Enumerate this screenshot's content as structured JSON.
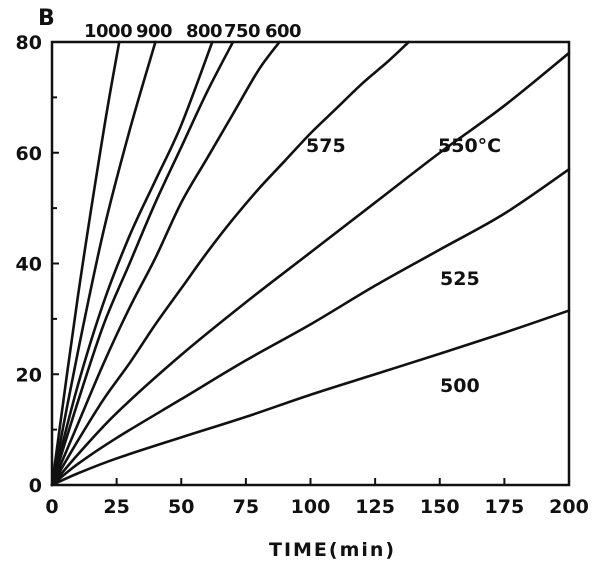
{
  "chart_data": {
    "type": "line",
    "panel_label": "B",
    "xlabel": "TIME(min)",
    "ylabel": "",
    "xlim": [
      0,
      200
    ],
    "ylim": [
      0,
      80
    ],
    "xticks": [
      0,
      25,
      50,
      75,
      100,
      125,
      150,
      175,
      200
    ],
    "yticks": [
      0,
      20,
      40,
      60,
      80
    ],
    "grid": false,
    "series": [
      {
        "name": "1000",
        "points": [
          [
            0,
            0
          ],
          [
            10,
            34
          ],
          [
            20,
            64
          ],
          [
            26,
            80
          ]
        ]
      },
      {
        "name": "900",
        "points": [
          [
            0,
            0
          ],
          [
            10,
            24
          ],
          [
            20,
            46
          ],
          [
            30,
            64
          ],
          [
            40,
            80
          ]
        ]
      },
      {
        "name": "800",
        "points": [
          [
            0,
            0
          ],
          [
            10,
            18
          ],
          [
            20,
            33
          ],
          [
            30,
            45
          ],
          [
            40,
            55
          ],
          [
            50,
            65
          ],
          [
            62,
            80
          ]
        ]
      },
      {
        "name": "750",
        "points": [
          [
            0,
            0
          ],
          [
            10,
            15
          ],
          [
            20,
            29
          ],
          [
            30,
            40
          ],
          [
            40,
            51
          ],
          [
            50,
            61
          ],
          [
            60,
            71
          ],
          [
            70,
            80
          ]
        ]
      },
      {
        "name": "600",
        "points": [
          [
            0,
            0
          ],
          [
            10,
            11
          ],
          [
            20,
            22
          ],
          [
            30,
            32
          ],
          [
            40,
            41
          ],
          [
            50,
            51
          ],
          [
            60,
            59
          ],
          [
            70,
            67
          ],
          [
            80,
            75
          ],
          [
            88,
            80
          ]
        ]
      },
      {
        "name": "575",
        "points": [
          [
            0,
            0
          ],
          [
            10,
            8
          ],
          [
            20,
            15.5
          ],
          [
            30,
            22
          ],
          [
            40,
            29
          ],
          [
            50,
            35.5
          ],
          [
            60,
            42
          ],
          [
            70,
            48
          ],
          [
            80,
            53.5
          ],
          [
            90,
            58.5
          ],
          [
            100,
            63.5
          ],
          [
            110,
            68
          ],
          [
            120,
            72.5
          ],
          [
            130,
            76.5
          ],
          [
            138,
            80
          ]
        ]
      },
      {
        "name": "550 °C",
        "points": [
          [
            0,
            0
          ],
          [
            10,
            5.5
          ],
          [
            25,
            13
          ],
          [
            50,
            23.5
          ],
          [
            75,
            33
          ],
          [
            100,
            42
          ],
          [
            125,
            51
          ],
          [
            150,
            60
          ],
          [
            175,
            68.5
          ],
          [
            200,
            78
          ]
        ]
      },
      {
        "name": "525",
        "points": [
          [
            0,
            0
          ],
          [
            10,
            3.8
          ],
          [
            25,
            8.5
          ],
          [
            50,
            15.5
          ],
          [
            75,
            22.5
          ],
          [
            100,
            29
          ],
          [
            125,
            36
          ],
          [
            150,
            42.5
          ],
          [
            175,
            49
          ],
          [
            200,
            57
          ]
        ]
      },
      {
        "name": "500",
        "points": [
          [
            0,
            0
          ],
          [
            10,
            2.1
          ],
          [
            25,
            4.8
          ],
          [
            50,
            8.6
          ],
          [
            75,
            12.3
          ],
          [
            100,
            16.3
          ],
          [
            125,
            20
          ],
          [
            150,
            23.7
          ],
          [
            175,
            27.5
          ],
          [
            200,
            31.5
          ]
        ]
      }
    ],
    "annotations": {
      "top_labels": [
        "1000",
        "900",
        "800",
        "750",
        "600"
      ],
      "inline_labels": [
        "575",
        "550°C",
        "525",
        "500"
      ]
    }
  }
}
